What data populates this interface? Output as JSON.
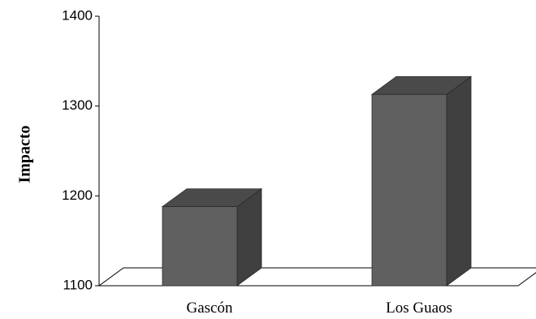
{
  "chart_data": {
    "type": "bar",
    "style": "3d-column",
    "categories": [
      "Gascón",
      "Los Guaos"
    ],
    "values": [
      1188,
      1313
    ],
    "ylabel": "Impacto",
    "xlabel": "",
    "ylim": [
      1100,
      1400
    ],
    "yticks": [
      1100,
      1200,
      1300,
      1400
    ],
    "grid": false,
    "legend": false,
    "colors": {
      "bar_front": "#606060",
      "bar_top": "#4a4a4a",
      "bar_side": "#404040",
      "floor": "#ffffff",
      "axis": "#000000"
    }
  }
}
